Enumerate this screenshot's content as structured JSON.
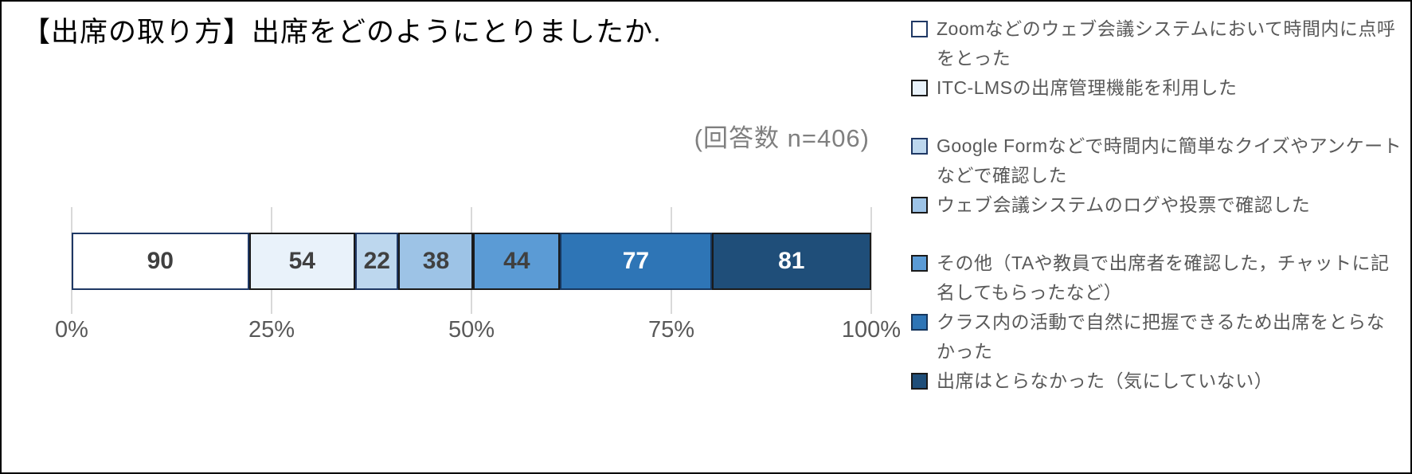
{
  "chart": {
    "title": "【出席の取り方】出席をどのようにとりましたか.",
    "annotation": "(回答数 n=406)"
  },
  "chart_data": {
    "type": "bar",
    "subtype": "stacked-horizontal-100pct",
    "title": "【出席の取り方】出席をどのようにとりましたか.",
    "annotation": "(回答数 n=406)",
    "n_total": 406,
    "grid": true,
    "legend_position": "right",
    "x_axis": {
      "ticks": [
        "0%",
        "25%",
        "50%",
        "75%",
        "100%"
      ],
      "range_percent": [
        0,
        100
      ]
    },
    "segments": [
      {
        "label": "Zoomなどのウェブ会議システムにおいて時間内に点呼をとった",
        "value": 90,
        "fill": "#FFFFFF",
        "border": "#1F3864",
        "text_color": "#404040"
      },
      {
        "label": "ITC-LMSの出席管理機能を利用した",
        "value": 54,
        "fill": "#E9F2FA",
        "border": "#1A1A1A",
        "text_color": "#404040"
      },
      {
        "label": "Google Formなどで時間内に簡単なクイズやアンケートなどで確認した",
        "value": 22,
        "fill": "#BDD7EE",
        "border": "#1F3864",
        "text_color": "#404040"
      },
      {
        "label": "ウェブ会議システムのログや投票で確認した",
        "value": 38,
        "fill": "#9DC3E6",
        "border": "#1A1A1A",
        "text_color": "#404040"
      },
      {
        "label": "その他（TAや教員で出席者を確認した，チャットに記名してもらったなど）",
        "value": 44,
        "fill": "#5B9BD5",
        "border": "#1A1A1A",
        "text_color": "#404040"
      },
      {
        "label": "クラス内の活動で自然に把握できるため出席をとらなかった",
        "value": 77,
        "fill": "#2E75B6",
        "border": "#17375E",
        "text_color": "#FFFFFF"
      },
      {
        "label": "出席はとらなかった（気にしていない）",
        "value": 81,
        "fill": "#1F4E79",
        "border": "#1A1A1A",
        "text_color": "#FFFFFF"
      }
    ],
    "legend_groups": [
      [
        0,
        1
      ],
      [
        2,
        3
      ],
      [
        4,
        5,
        6
      ]
    ]
  },
  "colors": {
    "grid": "#D9D9D9",
    "axis_text": "#595959",
    "legend_text": "#595959",
    "annotation_text": "#7F7F7F",
    "frame_border": "#000000"
  }
}
